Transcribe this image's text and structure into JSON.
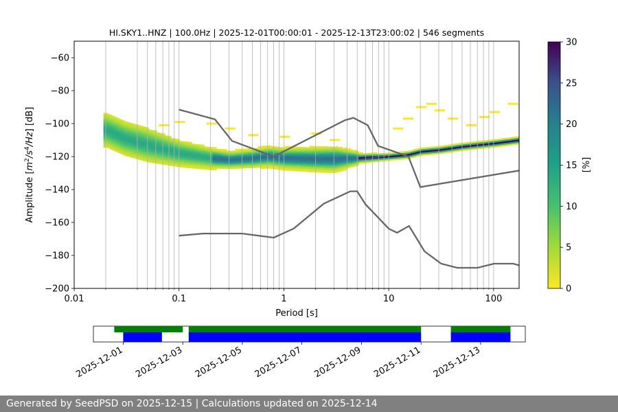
{
  "chart_data": {
    "type": "heatmap",
    "title": "HI.SKY1..HNZ | 100.0Hz | 2025-12-01T00:00:01 - 2025-12-13T23:00:02 | 546 segments",
    "xlabel": "Period [s]",
    "ylabel": "Amplitude [m²/s⁴/Hz] [dB]",
    "xscale": "log",
    "xlim": [
      0.01,
      175
    ],
    "ylim": [
      -200,
      -50
    ],
    "x_ticks": [
      {
        "value": 0.01,
        "label": "0.01"
      },
      {
        "value": 0.1,
        "label": "0.1"
      },
      {
        "value": 1,
        "label": "1"
      },
      {
        "value": 10,
        "label": "10"
      },
      {
        "value": 100,
        "label": "100"
      }
    ],
    "y_ticks": [
      {
        "value": -60,
        "label": "−60"
      },
      {
        "value": -80,
        "label": "−80"
      },
      {
        "value": -100,
        "label": "−100"
      },
      {
        "value": -120,
        "label": "−120"
      },
      {
        "value": -140,
        "label": "−140"
      },
      {
        "value": -160,
        "label": "−160"
      },
      {
        "value": -180,
        "label": "−180"
      },
      {
        "value": -200,
        "label": "−200"
      }
    ],
    "grid_periods": [
      0.02,
      0.04,
      0.05,
      0.06,
      0.07,
      0.08,
      0.09,
      0.2,
      0.3,
      0.4,
      0.5,
      0.6,
      0.7,
      0.8,
      0.9,
      2,
      3,
      4,
      5,
      6,
      7,
      8,
      9,
      20,
      30,
      40,
      50,
      60,
      70,
      80,
      90
    ],
    "colorbar": {
      "label": "[%]",
      "min": 0,
      "max": 30,
      "ticks": [
        {
          "value": 0,
          "label": "0"
        },
        {
          "value": 5,
          "label": "5"
        },
        {
          "value": 10,
          "label": "10"
        },
        {
          "value": 15,
          "label": "15"
        },
        {
          "value": 20,
          "label": "20"
        },
        {
          "value": 25,
          "label": "25"
        },
        {
          "value": 30,
          "label": "30"
        }
      ]
    },
    "pdf_mode_curve": [
      [
        0.02,
        -104
      ],
      [
        0.03,
        -109
      ],
      [
        0.05,
        -113
      ],
      [
        0.1,
        -118
      ],
      [
        0.2,
        -121
      ],
      [
        0.3,
        -122
      ],
      [
        0.5,
        -121
      ],
      [
        0.7,
        -120
      ],
      [
        1,
        -121
      ],
      [
        2,
        -121.5
      ],
      [
        3,
        -121.5
      ],
      [
        5,
        -121
      ],
      [
        7,
        -120.5
      ],
      [
        10,
        -120
      ],
      [
        15,
        -119
      ],
      [
        20,
        -117
      ],
      [
        30,
        -116
      ],
      [
        50,
        -114
      ],
      [
        70,
        -113
      ],
      [
        100,
        -112
      ],
      [
        175,
        -110
      ]
    ],
    "pdf_spread_db": [
      [
        0.02,
        8
      ],
      [
        0.05,
        8
      ],
      [
        0.1,
        6
      ],
      [
        0.3,
        4
      ],
      [
        1,
        5
      ],
      [
        3,
        6
      ],
      [
        5,
        3
      ],
      [
        10,
        2
      ],
      [
        20,
        2
      ],
      [
        50,
        2
      ],
      [
        175,
        2
      ]
    ],
    "pdf_sparse_points": [
      [
        0.07,
        -101
      ],
      [
        0.1,
        -99
      ],
      [
        0.2,
        -100
      ],
      [
        0.3,
        -103
      ],
      [
        0.5,
        -107
      ],
      [
        1,
        -108
      ],
      [
        2,
        -106
      ],
      [
        3,
        -110
      ],
      [
        12,
        -103
      ],
      [
        15,
        -97
      ],
      [
        20,
        -90
      ],
      [
        25,
        -88
      ],
      [
        30,
        -92
      ],
      [
        40,
        -97
      ],
      [
        60,
        -101
      ],
      [
        80,
        -96
      ],
      [
        100,
        -93
      ],
      [
        150,
        -88
      ]
    ],
    "noise_models": [
      {
        "name": "high",
        "points": [
          [
            0.1,
            -91.5
          ],
          [
            0.22,
            -97.4
          ],
          [
            0.32,
            -110.5
          ],
          [
            0.8,
            -120
          ],
          [
            3.8,
            -98
          ],
          [
            4.6,
            -96.5
          ],
          [
            6.3,
            -101
          ],
          [
            7.9,
            -113.5
          ],
          [
            15.4,
            -120
          ],
          [
            20,
            -138.5
          ],
          [
            175,
            -128.5
          ]
        ]
      },
      {
        "name": "low",
        "points": [
          [
            0.1,
            -168
          ],
          [
            0.17,
            -166.7
          ],
          [
            0.4,
            -166.7
          ],
          [
            0.8,
            -169.2
          ],
          [
            1.24,
            -163.7
          ],
          [
            2.4,
            -148.6
          ],
          [
            4.3,
            -141.1
          ],
          [
            5.0,
            -141.1
          ],
          [
            6.0,
            -149
          ],
          [
            10,
            -163.8
          ],
          [
            12,
            -166.2
          ],
          [
            15.6,
            -162.1
          ],
          [
            21.9,
            -177.5
          ],
          [
            31.6,
            -185
          ],
          [
            45,
            -187.5
          ],
          [
            70,
            -187.5
          ],
          [
            101,
            -185
          ],
          [
            154,
            -185
          ],
          [
            175,
            -186
          ]
        ]
      }
    ],
    "timeline": {
      "tick_labels": [
        "2025-12-01",
        "2025-12-03",
        "2025-12-05",
        "2025-12-07",
        "2025-12-09",
        "2025-12-11",
        "2025-12-13"
      ],
      "start_date": "2025-11-30",
      "end_date": "2025-12-14.5",
      "rows": [
        {
          "name": "data",
          "color": "#008000",
          "segments": [
            [
              "2025-11-30.7",
              "2025-12-03"
            ],
            [
              "2025-12-03.2",
              "2025-12-11"
            ],
            [
              "2025-12-12",
              "2025-12-14"
            ]
          ]
        },
        {
          "name": "psd",
          "color": "#0000ff",
          "segments": [
            [
              "2025-12-01",
              "2025-12-02.3"
            ],
            [
              "2025-12-03.2",
              "2025-12-11"
            ],
            [
              "2025-12-12",
              "2025-12-14"
            ]
          ]
        }
      ]
    }
  },
  "footer": {
    "text": "Generated by SeedPSD on 2025-12-15 | Calculations updated on 2025-12-14"
  }
}
